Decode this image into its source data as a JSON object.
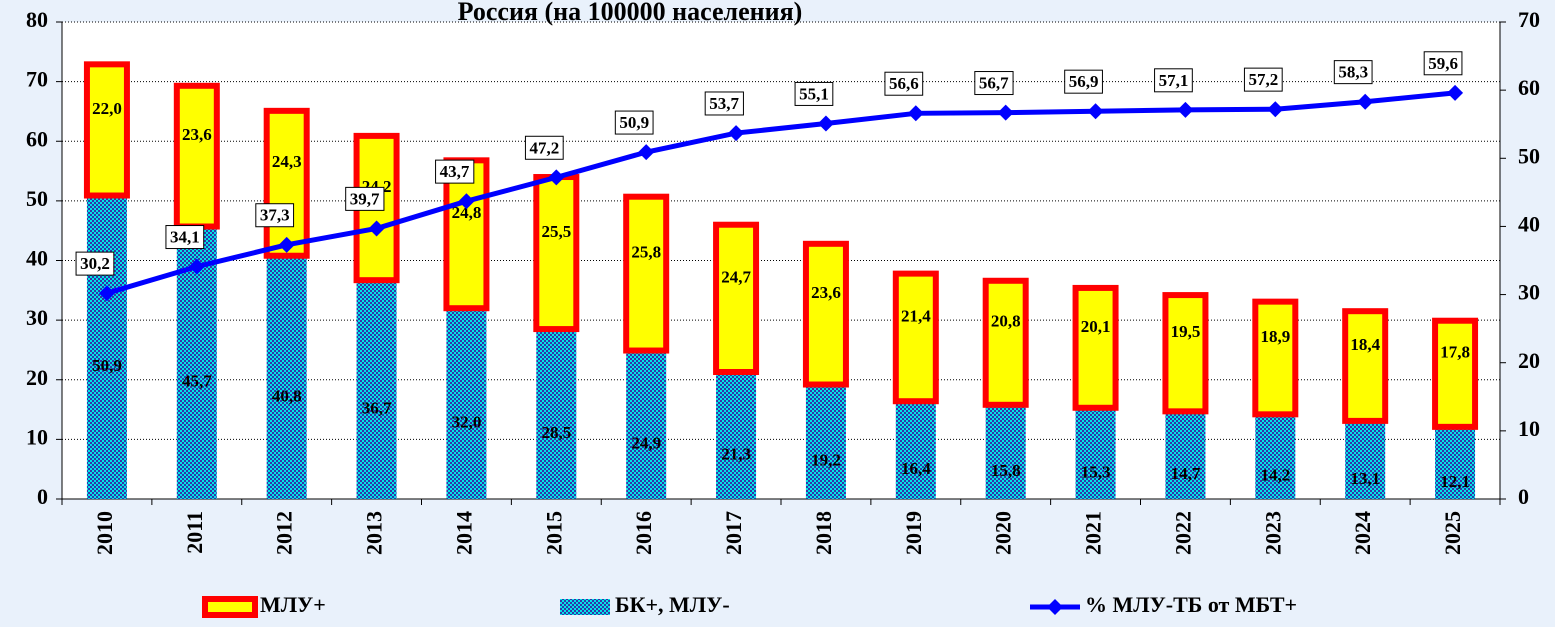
{
  "chart_data": {
    "type": "combo",
    "title": "Россия (на 100000 населения)",
    "categories": [
      "2010",
      "2011",
      "2012",
      "2013",
      "2014",
      "2015",
      "2016",
      "2017",
      "2018",
      "2019",
      "2020",
      "2021",
      "2022",
      "2023",
      "2024",
      "2025"
    ],
    "series": [
      {
        "name": "БК+, МЛУ-",
        "type": "bar",
        "color": "#00e5e5",
        "values": [
          50.9,
          45.7,
          40.8,
          36.7,
          32.0,
          28.5,
          24.9,
          21.3,
          19.2,
          16.4,
          15.8,
          15.3,
          14.7,
          14.2,
          13.1,
          12.1
        ],
        "value_labels": [
          "50,9",
          "45,7",
          "40,8",
          "36,7",
          "32,0",
          "28,5",
          "24,9",
          "21,3",
          "19,2",
          "16,4",
          "15,8",
          "15,3",
          "14,7",
          "14,2",
          "13,1",
          "12,1"
        ]
      },
      {
        "name": "МЛУ+",
        "type": "bar",
        "color": "#ffff00",
        "border": "#ff0000",
        "values": [
          22.0,
          23.6,
          24.3,
          24.2,
          24.8,
          25.5,
          25.8,
          24.7,
          23.6,
          21.4,
          20.8,
          20.1,
          19.5,
          18.9,
          18.4,
          17.8
        ],
        "value_labels": [
          "22,0",
          "23,6",
          "24,3",
          "24,2",
          "24,8",
          "25,5",
          "25,8",
          "24,7",
          "23,6",
          "21,4",
          "20,8",
          "20,1",
          "19,5",
          "18,9",
          "18,4",
          "17,8"
        ]
      },
      {
        "name": "% МЛУ-ТБ от МБТ+",
        "type": "line",
        "axis": "y2",
        "color": "#0000ff",
        "values": [
          30.2,
          34.1,
          37.3,
          39.7,
          43.7,
          47.2,
          50.9,
          53.7,
          55.1,
          56.6,
          56.7,
          56.9,
          57.1,
          57.2,
          58.3,
          59.6
        ],
        "value_labels": [
          "30,2",
          "34,1",
          "37,3",
          "39,7",
          "43,7",
          "47,2",
          "50,9",
          "53,7",
          "55,1",
          "56,6",
          "56,7",
          "56,9",
          "57,1",
          "57,2",
          "58,3",
          "59,6"
        ]
      }
    ],
    "ylim": [
      0,
      80
    ],
    "yticks": [
      0,
      10,
      20,
      30,
      40,
      50,
      60,
      70,
      80
    ],
    "y2lim": [
      0,
      70
    ],
    "y2ticks": [
      0,
      10,
      20,
      30,
      40,
      50,
      60,
      70
    ],
    "grid": true,
    "stacked": true,
    "legend": "bottom"
  }
}
